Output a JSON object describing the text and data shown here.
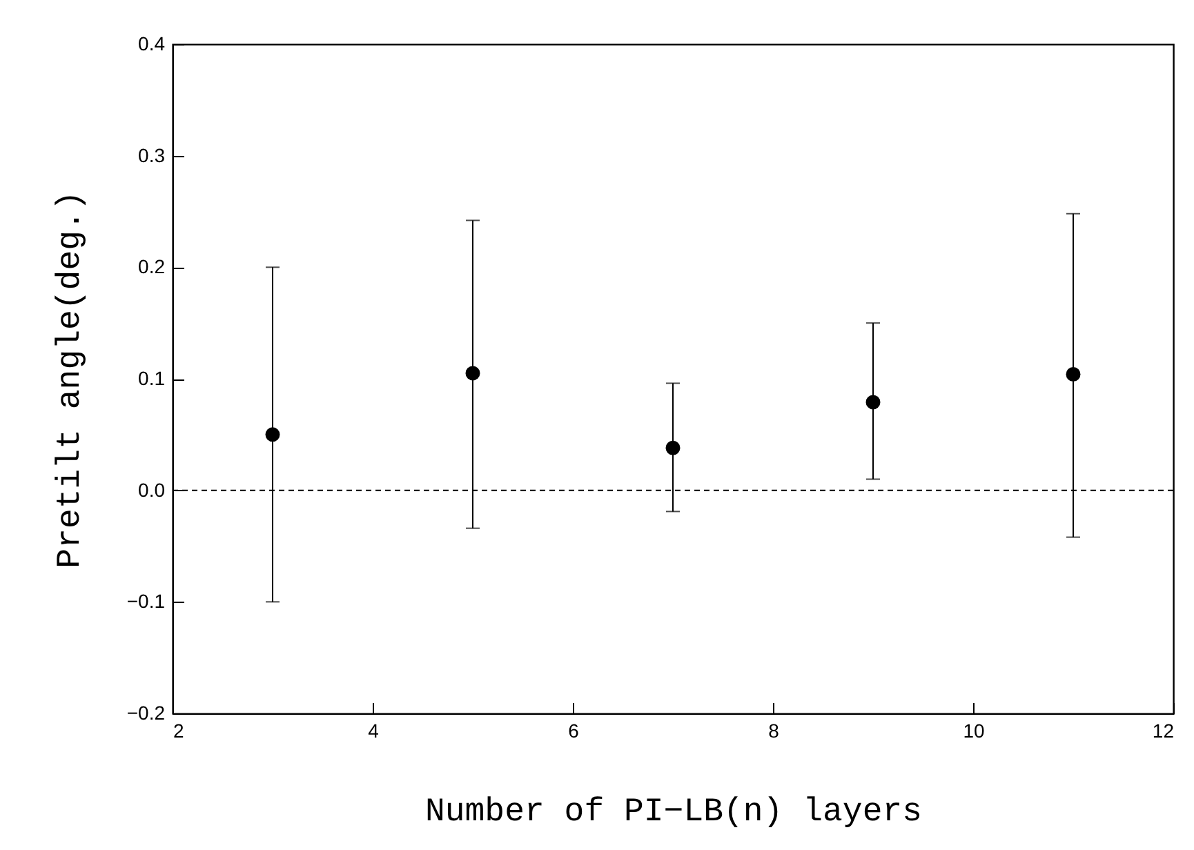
{
  "chart_data": {
    "type": "scatter",
    "xlabel": "Number of PI−LB(n) layers",
    "ylabel": "Pretilt angle(deg.)",
    "x": [
      3,
      5,
      7,
      9,
      11
    ],
    "series": [
      {
        "color": "#000000",
        "values": [
          0.05,
          0.105,
          0.038,
          0.079,
          0.104
        ],
        "errors": [
          [
            -0.1,
            0.2
          ],
          [
            -0.034,
            0.242
          ],
          [
            -0.019,
            0.096
          ],
          [
            0.01,
            0.15
          ],
          [
            -0.042,
            0.248
          ]
        ]
      }
    ],
    "marker": "circle",
    "xlim": [
      2,
      12
    ],
    "xticks": [
      2,
      4,
      6,
      8,
      10,
      12
    ],
    "ylim": [
      -0.2,
      0.4
    ],
    "yticks": [
      {
        "value": -0.2,
        "label": "−0.2"
      },
      {
        "value": -0.1,
        "label": "−0.1"
      },
      {
        "value": 0,
        "label": "0.0"
      },
      0.1,
      0.2,
      0.3,
      0.4
    ],
    "ref_lines": [
      {
        "axis": "y",
        "value": 0,
        "line_style": "dashed"
      }
    ]
  }
}
